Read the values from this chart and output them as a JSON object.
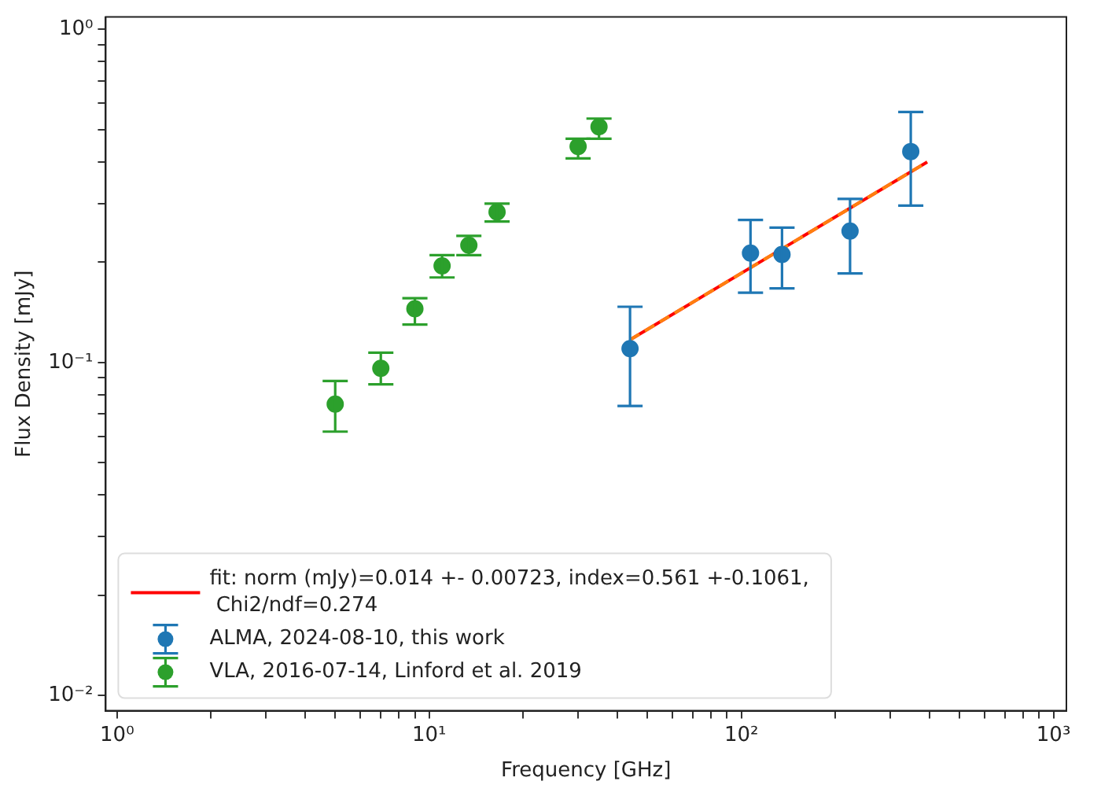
{
  "chart_data": {
    "type": "scatter",
    "xlabel": "Frequency [GHz]",
    "ylabel": "Flux Density [mJy]",
    "log": "xy",
    "grid": false,
    "legend": "bottom left",
    "xlim": [
      0.92,
      1100
    ],
    "ylim": [
      0.009,
      1.09
    ],
    "xticks": [
      {
        "value": 1,
        "label": "10⁰"
      },
      {
        "value": 2,
        "label": null
      },
      {
        "value": 3,
        "label": null
      },
      {
        "value": 4,
        "label": null
      },
      {
        "value": 5,
        "label": null
      },
      {
        "value": 6,
        "label": null
      },
      {
        "value": 7,
        "label": null
      },
      {
        "value": 8,
        "label": null
      },
      {
        "value": 9,
        "label": null
      },
      {
        "value": 10,
        "label": "10¹"
      },
      {
        "value": 20,
        "label": null
      },
      {
        "value": 30,
        "label": null
      },
      {
        "value": 40,
        "label": null
      },
      {
        "value": 50,
        "label": null
      },
      {
        "value": 60,
        "label": null
      },
      {
        "value": 70,
        "label": null
      },
      {
        "value": 80,
        "label": null
      },
      {
        "value": 90,
        "label": null
      },
      {
        "value": 100,
        "label": "10²"
      },
      {
        "value": 200,
        "label": null
      },
      {
        "value": 300,
        "label": null
      },
      {
        "value": 400,
        "label": null
      },
      {
        "value": 500,
        "label": null
      },
      {
        "value": 600,
        "label": null
      },
      {
        "value": 700,
        "label": null
      },
      {
        "value": 800,
        "label": null
      },
      {
        "value": 900,
        "label": null
      },
      {
        "value": 1000,
        "label": "10³"
      }
    ],
    "yticks": [
      {
        "value": 0.01,
        "label": "10⁻²"
      },
      {
        "value": 0.02,
        "label": null
      },
      {
        "value": 0.03,
        "label": null
      },
      {
        "value": 0.04,
        "label": null
      },
      {
        "value": 0.05,
        "label": null
      },
      {
        "value": 0.06,
        "label": null
      },
      {
        "value": 0.07,
        "label": null
      },
      {
        "value": 0.08,
        "label": null
      },
      {
        "value": 0.09,
        "label": null
      },
      {
        "value": 0.1,
        "label": "10⁻¹"
      },
      {
        "value": 0.2,
        "label": null
      },
      {
        "value": 0.3,
        "label": null
      },
      {
        "value": 0.4,
        "label": null
      },
      {
        "value": 0.5,
        "label": null
      },
      {
        "value": 0.6,
        "label": null
      },
      {
        "value": 0.7,
        "label": null
      },
      {
        "value": 0.8,
        "label": null
      },
      {
        "value": 0.9,
        "label": null
      },
      {
        "value": 1,
        "label": "10⁰"
      }
    ],
    "series": [
      {
        "name": "fit: norm (mJy)=0.014 +- 0.00723, index=0.561 +-0.1061,\n Chi2/ndf=0.274",
        "type": "line",
        "marker": "none",
        "color": "#ff0000",
        "x": [
          44,
          394
        ],
        "values": [
          0.117,
          0.4
        ]
      },
      {
        "type": "line",
        "marker": "none",
        "color": "#ff7f0e",
        "line_style": "dashed",
        "x": [
          44,
          394
        ],
        "values": [
          0.117,
          0.4
        ]
      },
      {
        "name": "ALMA, 2024-08-10, this work",
        "marker": "circle",
        "color": "#1f77b4",
        "x": [
          44,
          107,
          135,
          223,
          349
        ],
        "values": [
          0.11,
          0.213,
          0.211,
          0.248,
          0.43
        ],
        "errors": [
          [
            0.074,
            0.147
          ],
          [
            0.162,
            0.268
          ],
          [
            0.167,
            0.254
          ],
          [
            0.185,
            0.31
          ],
          [
            0.296,
            0.565
          ]
        ]
      },
      {
        "name": "VLA, 2016-07-14, Linford et al. 2019",
        "marker": "circle",
        "color": "#2ca02c",
        "x": [
          5,
          7,
          9,
          11,
          13.4,
          16.5,
          30,
          35
        ],
        "values": [
          0.075,
          0.096,
          0.145,
          0.195,
          0.225,
          0.283,
          0.445,
          0.51
        ],
        "errors": [
          [
            0.062,
            0.088
          ],
          [
            0.086,
            0.107
          ],
          [
            0.13,
            0.156
          ],
          [
            0.18,
            0.21
          ],
          [
            0.21,
            0.24
          ],
          [
            0.265,
            0.3
          ],
          [
            0.41,
            0.47
          ],
          [
            0.47,
            0.54
          ]
        ]
      }
    ]
  }
}
